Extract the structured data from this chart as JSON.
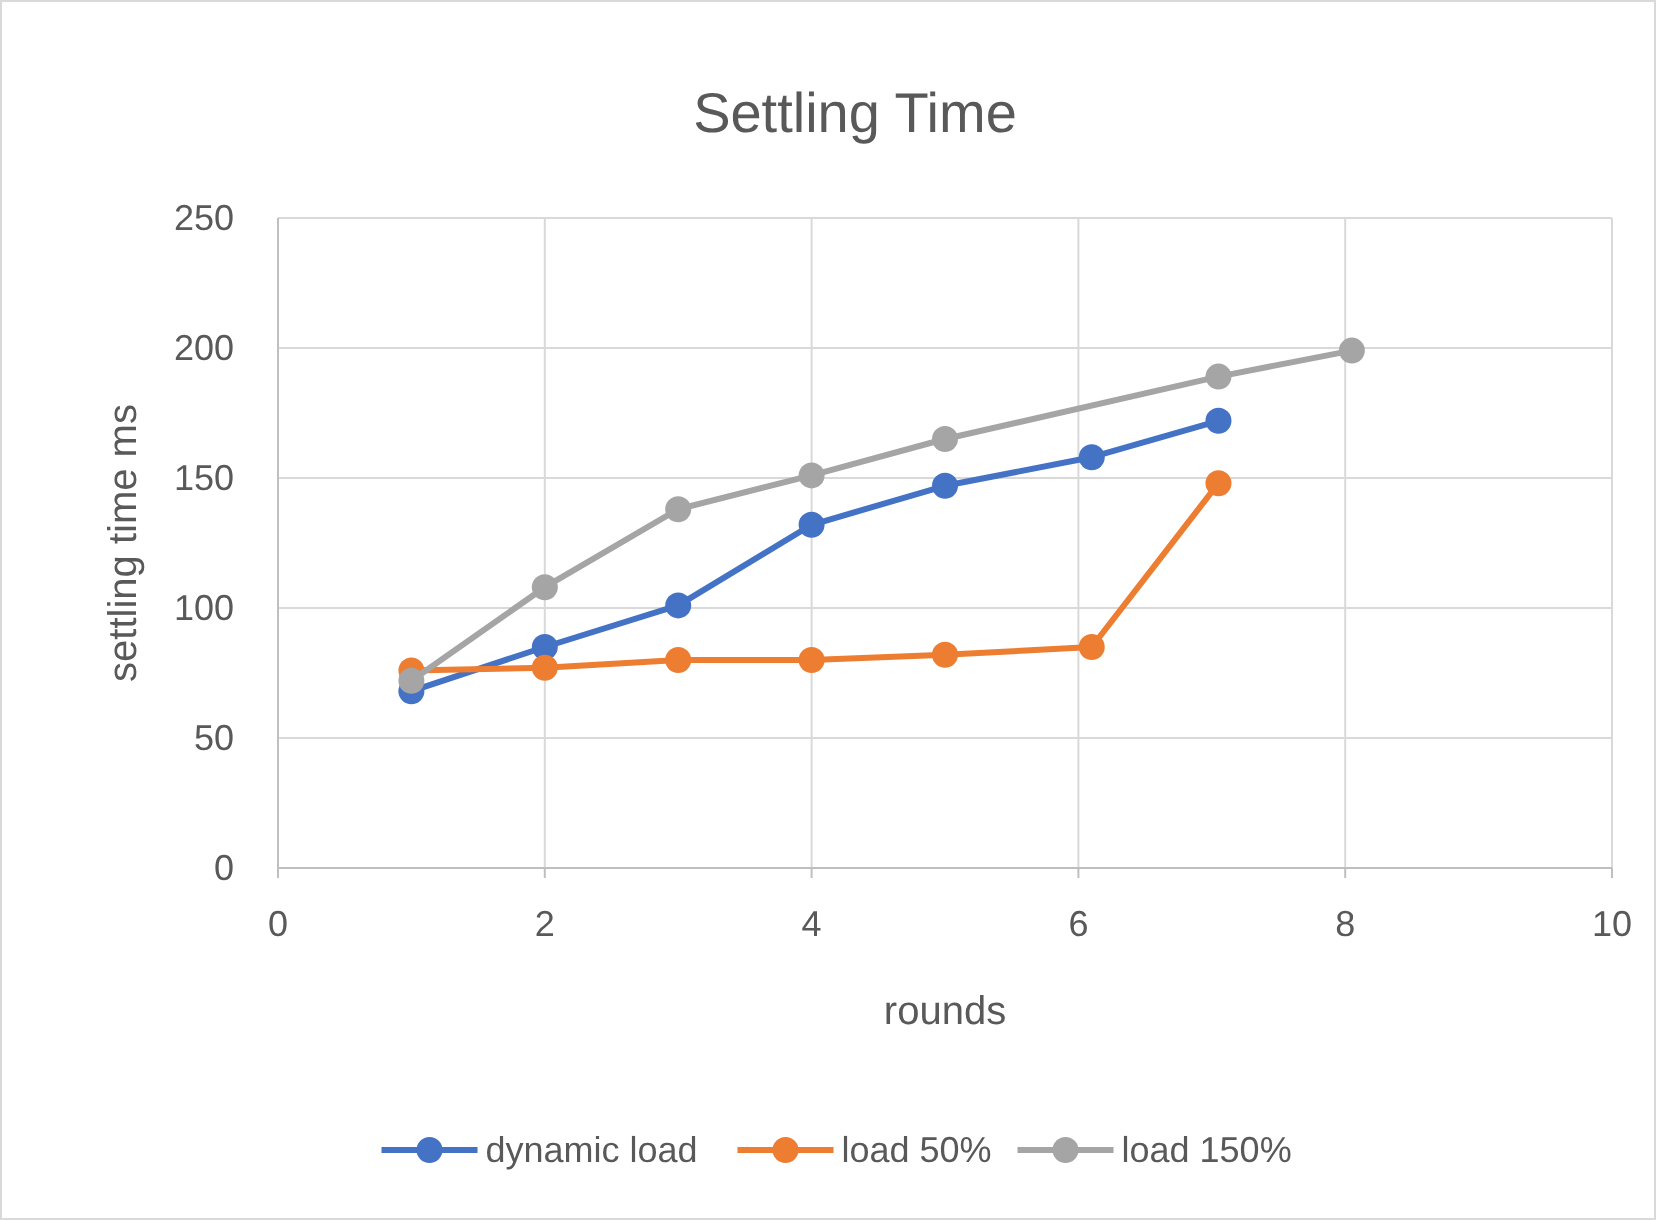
{
  "chart_data": {
    "type": "line",
    "title": "Settling Time",
    "xlabel": "rounds",
    "ylabel": "settling time ms",
    "xlim": [
      0,
      10
    ],
    "xticks": [
      0,
      2,
      4,
      6,
      8,
      10
    ],
    "ylim": [
      0,
      250
    ],
    "yticks": [
      0,
      50,
      100,
      150,
      200,
      250
    ],
    "grid": true,
    "legend": "bottom",
    "marker": "circle",
    "series": [
      {
        "name": "dynamic load",
        "color": "#4472c4",
        "x": [
          1,
          2,
          3,
          4,
          5,
          6.1,
          7.05
        ],
        "values": [
          68,
          85,
          101,
          132,
          147,
          158,
          172
        ]
      },
      {
        "name": "load 50%",
        "color": "#ed7d31",
        "x": [
          1,
          2,
          3,
          4,
          5,
          6.1,
          7.05
        ],
        "values": [
          76,
          77,
          80,
          80,
          82,
          85,
          148
        ]
      },
      {
        "name": "load 150%",
        "color": "#a5a5a5",
        "x": [
          1,
          2,
          3,
          4,
          5,
          7.05,
          8.05
        ],
        "values": [
          72,
          108,
          138,
          151,
          165,
          189,
          199
        ]
      }
    ]
  }
}
